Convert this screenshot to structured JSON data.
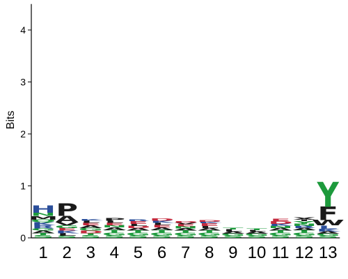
{
  "chart_data": {
    "type": "sequence-logo",
    "ylabel": "Bits",
    "ylim": [
      0,
      4.5
    ],
    "yticks": [
      "0",
      "1",
      "2",
      "3",
      "4"
    ],
    "positions": [
      "1",
      "2",
      "3",
      "4",
      "5",
      "6",
      "7",
      "8",
      "9",
      "10",
      "11",
      "12",
      "13"
    ],
    "colors": {
      "black": "#1a1a1a",
      "green": "#1d9a3c",
      "blue": "#2a4e9a",
      "red": "#c42a3e"
    },
    "stacks": [
      [
        {
          "letter": "S",
          "bits": 0.05,
          "color": "green"
        },
        {
          "letter": "T",
          "bits": 0.04,
          "color": "green"
        },
        {
          "letter": "A",
          "bits": 0.05,
          "color": "black"
        },
        {
          "letter": "G",
          "bits": 0.04,
          "color": "green"
        },
        {
          "letter": "R",
          "bits": 0.06,
          "color": "blue"
        },
        {
          "letter": "K",
          "bits": 0.06,
          "color": "blue"
        },
        {
          "letter": "Q",
          "bits": 0.05,
          "color": "green"
        },
        {
          "letter": "M",
          "bits": 0.07,
          "color": "black"
        },
        {
          "letter": "N",
          "bits": 0.06,
          "color": "green"
        },
        {
          "letter": "H",
          "bits": 0.14,
          "color": "blue"
        }
      ],
      [
        {
          "letter": "S",
          "bits": 0.04,
          "color": "green"
        },
        {
          "letter": "L",
          "bits": 0.05,
          "color": "black"
        },
        {
          "letter": "K",
          "bits": 0.05,
          "color": "blue"
        },
        {
          "letter": "E",
          "bits": 0.05,
          "color": "red"
        },
        {
          "letter": "G",
          "bits": 0.05,
          "color": "green"
        },
        {
          "letter": "V",
          "bits": 0.06,
          "color": "black"
        },
        {
          "letter": "A",
          "bits": 0.12,
          "color": "black"
        },
        {
          "letter": "P",
          "bits": 0.24,
          "color": "black"
        }
      ],
      [
        {
          "letter": "S",
          "bits": 0.05,
          "color": "green"
        },
        {
          "letter": "T",
          "bits": 0.04,
          "color": "green"
        },
        {
          "letter": "D",
          "bits": 0.05,
          "color": "red"
        },
        {
          "letter": "G",
          "bits": 0.05,
          "color": "green"
        },
        {
          "letter": "A",
          "bits": 0.05,
          "color": "black"
        },
        {
          "letter": "E",
          "bits": 0.05,
          "color": "red"
        },
        {
          "letter": "L",
          "bits": 0.04,
          "color": "black"
        },
        {
          "letter": "K",
          "bits": 0.03,
          "color": "blue"
        }
      ],
      [
        {
          "letter": "S",
          "bits": 0.05,
          "color": "green"
        },
        {
          "letter": "G",
          "bits": 0.05,
          "color": "green"
        },
        {
          "letter": "T",
          "bits": 0.05,
          "color": "green"
        },
        {
          "letter": "A",
          "bits": 0.05,
          "color": "black"
        },
        {
          "letter": "N",
          "bits": 0.04,
          "color": "green"
        },
        {
          "letter": "E",
          "bits": 0.05,
          "color": "red"
        },
        {
          "letter": "L",
          "bits": 0.04,
          "color": "black"
        },
        {
          "letter": "P",
          "bits": 0.05,
          "color": "black"
        }
      ],
      [
        {
          "letter": "S",
          "bits": 0.05,
          "color": "green"
        },
        {
          "letter": "G",
          "bits": 0.05,
          "color": "green"
        },
        {
          "letter": "T",
          "bits": 0.04,
          "color": "green"
        },
        {
          "letter": "A",
          "bits": 0.05,
          "color": "black"
        },
        {
          "letter": "D",
          "bits": 0.04,
          "color": "red"
        },
        {
          "letter": "L",
          "bits": 0.04,
          "color": "black"
        },
        {
          "letter": "E",
          "bits": 0.05,
          "color": "red"
        },
        {
          "letter": "R",
          "bits": 0.03,
          "color": "blue"
        }
      ],
      [
        {
          "letter": "S",
          "bits": 0.05,
          "color": "green"
        },
        {
          "letter": "G",
          "bits": 0.05,
          "color": "green"
        },
        {
          "letter": "T",
          "bits": 0.05,
          "color": "green"
        },
        {
          "letter": "A",
          "bits": 0.05,
          "color": "black"
        },
        {
          "letter": "E",
          "bits": 0.05,
          "color": "red"
        },
        {
          "letter": "L",
          "bits": 0.04,
          "color": "black"
        },
        {
          "letter": "K",
          "bits": 0.04,
          "color": "blue"
        },
        {
          "letter": "D",
          "bits": 0.04,
          "color": "red"
        }
      ],
      [
        {
          "letter": "S",
          "bits": 0.05,
          "color": "green"
        },
        {
          "letter": "G",
          "bits": 0.05,
          "color": "green"
        },
        {
          "letter": "T",
          "bits": 0.04,
          "color": "green"
        },
        {
          "letter": "A",
          "bits": 0.04,
          "color": "black"
        },
        {
          "letter": "N",
          "bits": 0.04,
          "color": "green"
        },
        {
          "letter": "E",
          "bits": 0.04,
          "color": "red"
        },
        {
          "letter": "V",
          "bits": 0.03,
          "color": "black"
        },
        {
          "letter": "D",
          "bits": 0.03,
          "color": "red"
        }
      ],
      [
        {
          "letter": "S",
          "bits": 0.05,
          "color": "green"
        },
        {
          "letter": "G",
          "bits": 0.05,
          "color": "green"
        },
        {
          "letter": "T",
          "bits": 0.04,
          "color": "green"
        },
        {
          "letter": "A",
          "bits": 0.05,
          "color": "black"
        },
        {
          "letter": "L",
          "bits": 0.04,
          "color": "black"
        },
        {
          "letter": "E",
          "bits": 0.05,
          "color": "red"
        },
        {
          "letter": "K",
          "bits": 0.03,
          "color": "blue"
        },
        {
          "letter": "D",
          "bits": 0.03,
          "color": "red"
        }
      ],
      [
        {
          "letter": "S",
          "bits": 0.04,
          "color": "green"
        },
        {
          "letter": "G",
          "bits": 0.04,
          "color": "green"
        },
        {
          "letter": "A",
          "bits": 0.04,
          "color": "black"
        },
        {
          "letter": "L",
          "bits": 0.04,
          "color": "black"
        },
        {
          "letter": "T",
          "bits": 0.03,
          "color": "green"
        }
      ],
      [
        {
          "letter": "S",
          "bits": 0.04,
          "color": "green"
        },
        {
          "letter": "G",
          "bits": 0.04,
          "color": "green"
        },
        {
          "letter": "A",
          "bits": 0.04,
          "color": "black"
        },
        {
          "letter": "L",
          "bits": 0.03,
          "color": "black"
        },
        {
          "letter": "T",
          "bits": 0.03,
          "color": "green"
        }
      ],
      [
        {
          "letter": "S",
          "bits": 0.05,
          "color": "green"
        },
        {
          "letter": "G",
          "bits": 0.05,
          "color": "green"
        },
        {
          "letter": "T",
          "bits": 0.04,
          "color": "green"
        },
        {
          "letter": "A",
          "bits": 0.05,
          "color": "black"
        },
        {
          "letter": "N",
          "bits": 0.04,
          "color": "green"
        },
        {
          "letter": "K",
          "bits": 0.04,
          "color": "blue"
        },
        {
          "letter": "D",
          "bits": 0.05,
          "color": "red"
        },
        {
          "letter": "E",
          "bits": 0.04,
          "color": "red"
        }
      ],
      [
        {
          "letter": "S",
          "bits": 0.05,
          "color": "green"
        },
        {
          "letter": "G",
          "bits": 0.05,
          "color": "green"
        },
        {
          "letter": "T",
          "bits": 0.05,
          "color": "green"
        },
        {
          "letter": "A",
          "bits": 0.04,
          "color": "black"
        },
        {
          "letter": "R",
          "bits": 0.04,
          "color": "blue"
        },
        {
          "letter": "N",
          "bits": 0.04,
          "color": "green"
        },
        {
          "letter": "Y",
          "bits": 0.05,
          "color": "green"
        },
        {
          "letter": "I",
          "bits": 0.03,
          "color": "black"
        },
        {
          "letter": "X",
          "bits": 0.04,
          "color": "black"
        }
      ],
      [
        {
          "letter": "S",
          "bits": 0.04,
          "color": "green"
        },
        {
          "letter": "G",
          "bits": 0.04,
          "color": "green"
        },
        {
          "letter": "A",
          "bits": 0.04,
          "color": "black"
        },
        {
          "letter": "K",
          "bits": 0.05,
          "color": "blue"
        },
        {
          "letter": "L",
          "bits": 0.07,
          "color": "blue"
        },
        {
          "letter": "W",
          "bits": 0.1,
          "color": "black"
        },
        {
          "letter": "F",
          "bits": 0.26,
          "color": "black"
        },
        {
          "letter": "Y",
          "bits": 0.48,
          "color": "green"
        }
      ]
    ]
  }
}
